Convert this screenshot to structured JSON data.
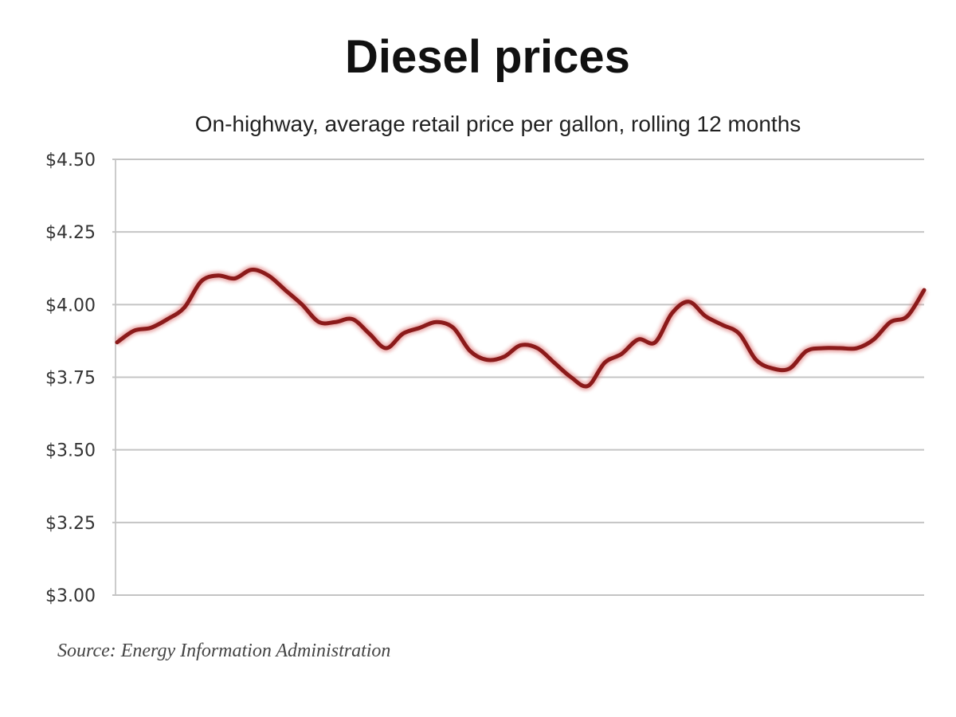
{
  "chart_data": {
    "type": "line",
    "title": "Diesel prices",
    "subtitle": "On-highway, average retail price per gallon, rolling 12 months",
    "source": "Source: Energy Information Administration",
    "xlabel": "",
    "ylabel": "",
    "ylim": [
      3.0,
      4.5
    ],
    "yticks": [
      "$3.00",
      "$3.25",
      "$3.50",
      "$3.75",
      "$4.00",
      "$4.25",
      "$4.50"
    ],
    "ytick_values": [
      3.0,
      3.25,
      3.5,
      3.75,
      4.0,
      4.25,
      4.5
    ],
    "grid": "horizontal",
    "line_color": "#8b1a1a",
    "series": [
      {
        "values": [
          3.87,
          3.91,
          3.92,
          3.95,
          3.99,
          4.08,
          4.1,
          4.09,
          4.12,
          4.1,
          4.05,
          4.0,
          3.94,
          3.94,
          3.95,
          3.9,
          3.85,
          3.9,
          3.92,
          3.94,
          3.92,
          3.84,
          3.81,
          3.82,
          3.86,
          3.85,
          3.8,
          3.75,
          3.72,
          3.8,
          3.83,
          3.88,
          3.87,
          3.97,
          4.01,
          3.96,
          3.93,
          3.9,
          3.81,
          3.78,
          3.78,
          3.84,
          3.85,
          3.85,
          3.85,
          3.88,
          3.94,
          3.96,
          4.05
        ]
      }
    ]
  }
}
